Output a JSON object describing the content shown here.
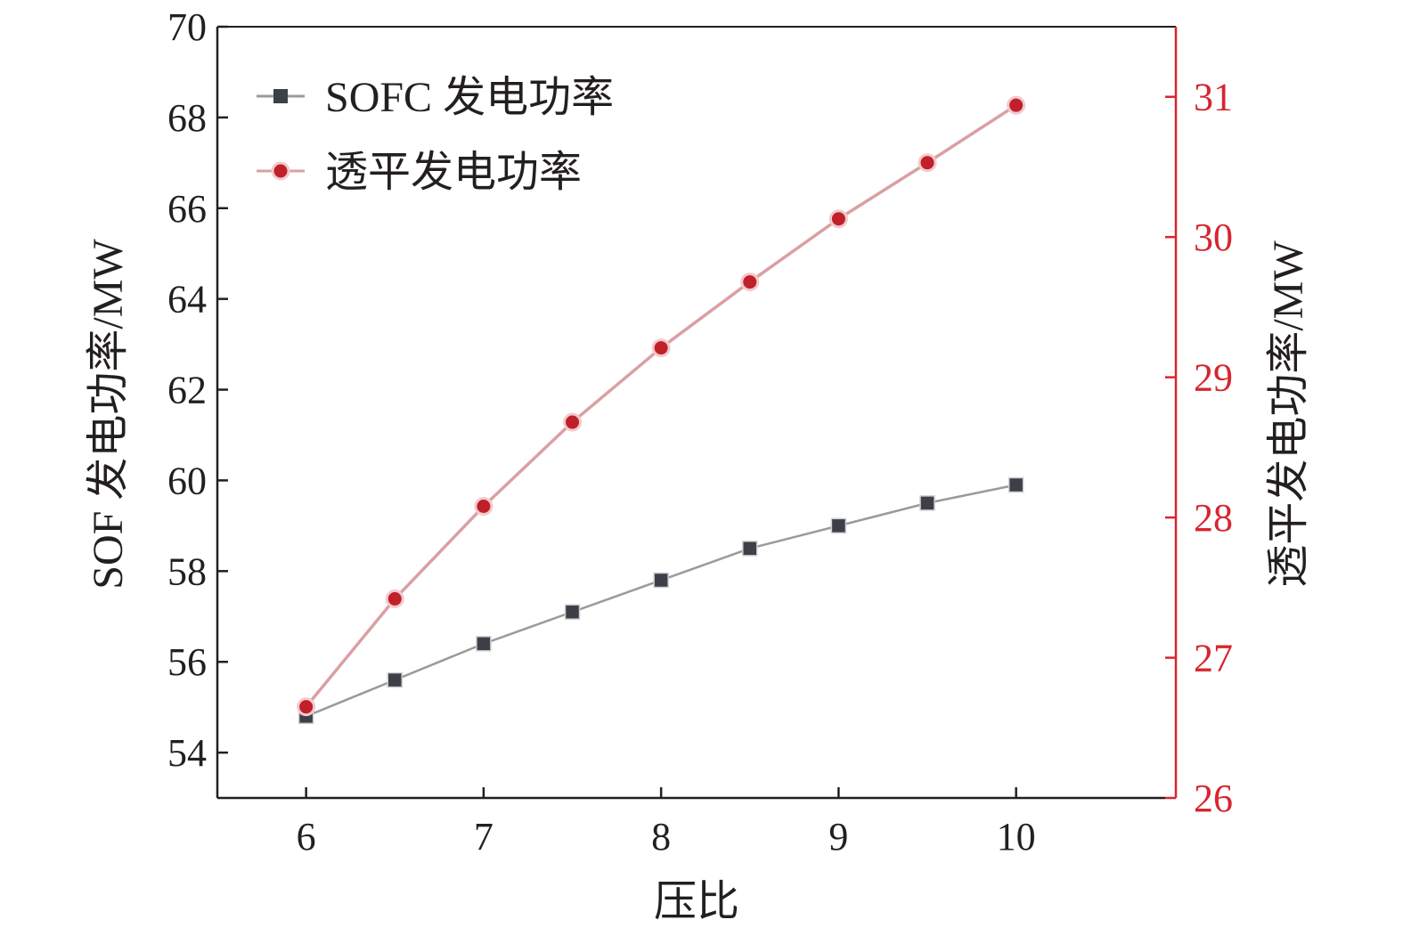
{
  "chart_data": {
    "type": "line",
    "xlabel": "压比",
    "x": [
      6,
      6.5,
      7,
      7.5,
      8,
      8.5,
      9,
      9.5,
      10
    ],
    "x_ticks": [
      "6",
      "7",
      "8",
      "9",
      "10"
    ],
    "x_tick_values": [
      6,
      7,
      8,
      9,
      10
    ],
    "xlim": [
      5.5,
      10.9
    ],
    "y_left": {
      "label": "SOF 发电功率/MW",
      "lim": [
        53,
        70
      ],
      "ticks": [
        54,
        56,
        58,
        60,
        62,
        64,
        66,
        68,
        70
      ],
      "color": "#231f20"
    },
    "y_right": {
      "label": "透平发电功率/MW",
      "lim": [
        26,
        31.5
      ],
      "ticks": [
        26,
        27,
        28,
        29,
        30,
        31
      ],
      "color": "#d7262e"
    },
    "series": [
      {
        "name": "SOFC 发电功率",
        "axis": "left",
        "marker": "square",
        "color": "#3d4048",
        "line_color": "#9a9a9a",
        "values": [
          54.8,
          55.6,
          56.4,
          57.1,
          57.8,
          58.5,
          59.0,
          59.5,
          59.9
        ]
      },
      {
        "name": "透平发电功率",
        "axis": "right",
        "marker": "circle",
        "color": "#c0202a",
        "line_color": "#d9a0a4",
        "values": [
          26.65,
          27.42,
          28.08,
          28.68,
          29.21,
          29.68,
          30.13,
          30.53,
          30.94
        ]
      }
    ],
    "legend_position": "top-left",
    "grid": false
  }
}
